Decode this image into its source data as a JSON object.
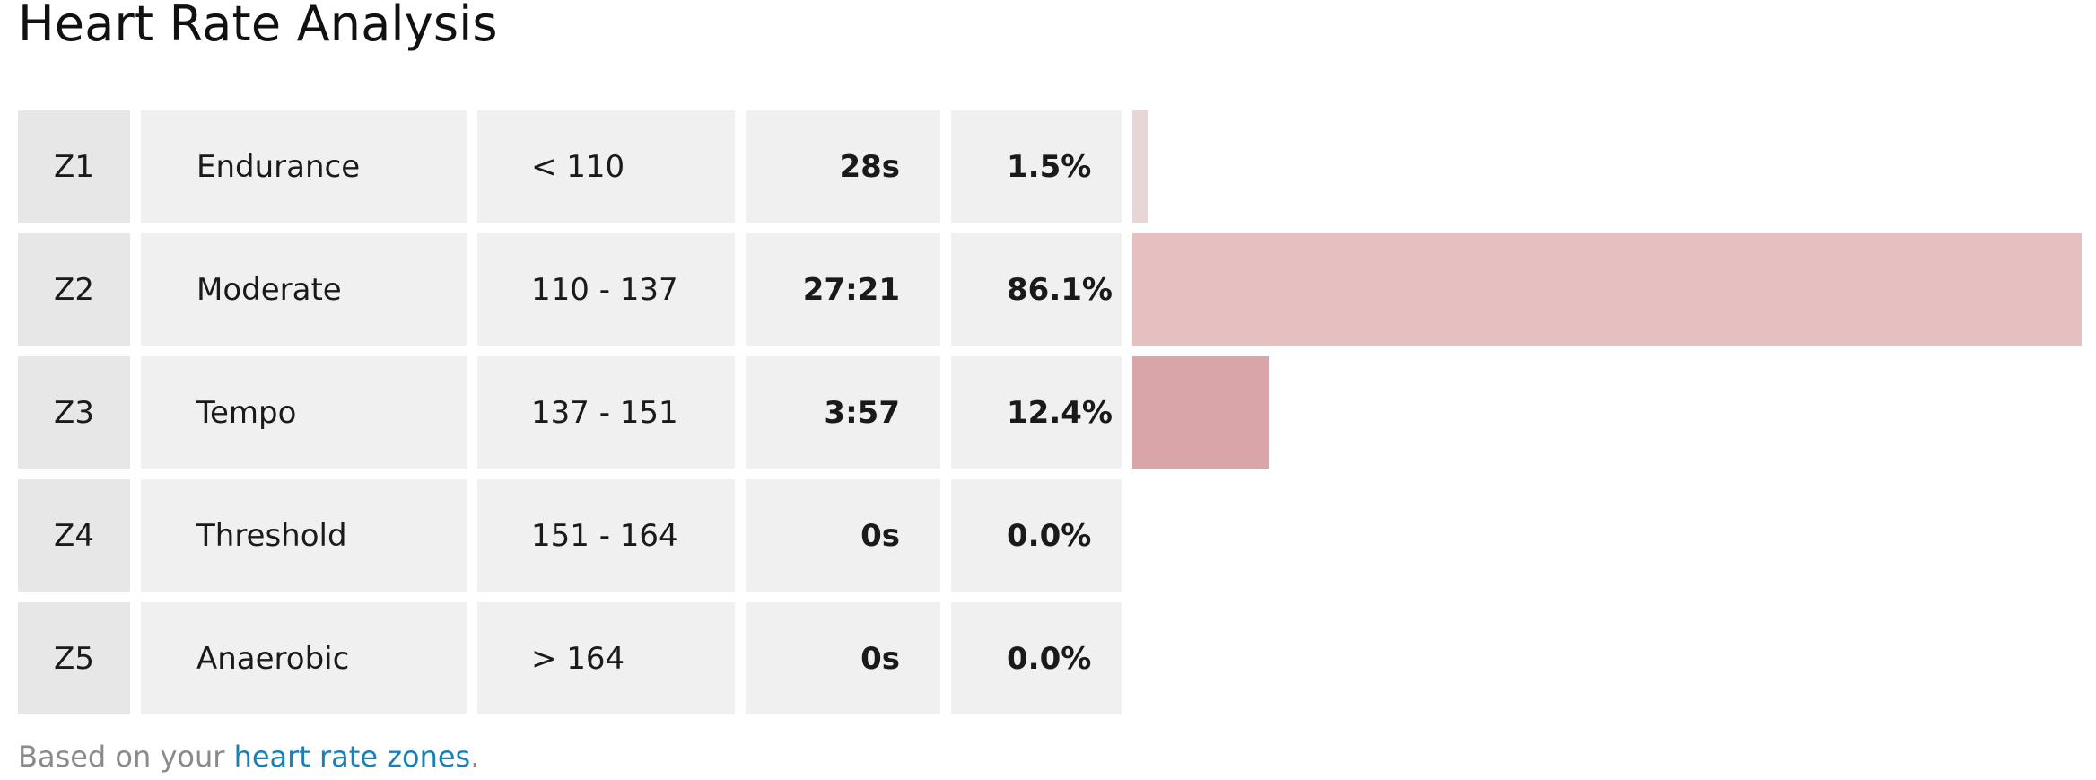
{
  "title": "Heart Rate Analysis",
  "zones": [
    {
      "zone": "Z1",
      "name": "Endurance",
      "range": "< 110",
      "time": "28s",
      "percent": "1.5%",
      "fraction": 0.015,
      "bar_color": "#e8d5d6"
    },
    {
      "zone": "Z2",
      "name": "Moderate",
      "range": "110 - 137",
      "time": "27:21",
      "percent": "86.1%",
      "fraction": 0.861,
      "bar_color": "#e6bfc1"
    },
    {
      "zone": "Z3",
      "name": "Tempo",
      "range": "137 - 151",
      "time": "3:57",
      "percent": "12.4%",
      "fraction": 0.124,
      "bar_color": "#d9a5a8"
    },
    {
      "zone": "Z4",
      "name": "Threshold",
      "range": "151 - 164",
      "time": "0s",
      "percent": "0.0%",
      "fraction": 0.0,
      "bar_color": "#d08e92"
    },
    {
      "zone": "Z5",
      "name": "Anaerobic",
      "range": "> 164",
      "time": "0s",
      "percent": "0.0%",
      "fraction": 0.0,
      "bar_color": "#c4767b"
    }
  ],
  "footnote": {
    "prefix": "Based on your ",
    "link_text": "heart rate zones",
    "suffix": "."
  }
}
